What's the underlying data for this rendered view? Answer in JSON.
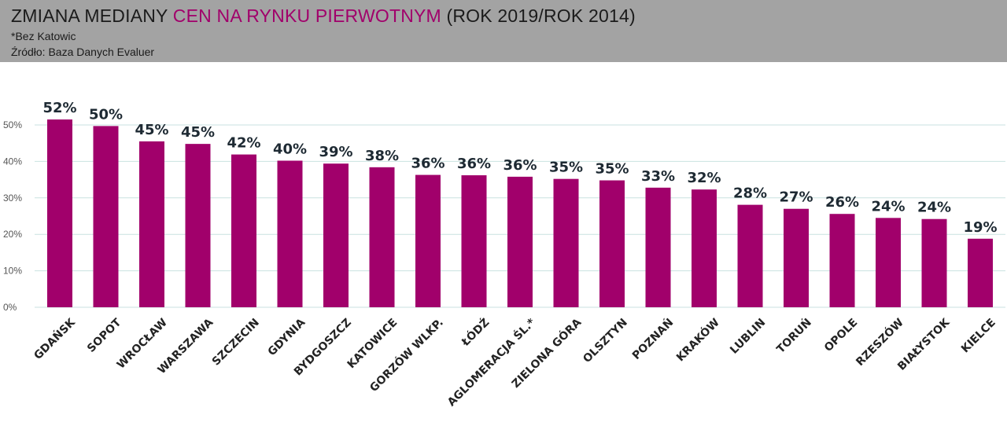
{
  "header": {
    "title_part1": "ZMIANA MEDIANY ",
    "title_part2": "CEN NA RYNKU PIERWOTNYM",
    "title_part3": " (ROK 2019/ROK 2014)",
    "note": "*Bez Katowic",
    "source": "Źródło: Baza Danych Evaluer"
  },
  "colors": {
    "bar": "#a1006b",
    "accent": "#a1006b",
    "header_bg": "#a3a3a3",
    "grid": "#c9e2e0"
  },
  "chart_data": {
    "type": "bar",
    "categories": [
      "GDAŃSK",
      "SOPOT",
      "WROCŁAW",
      "WARSZAWA",
      "SZCZECIN",
      "GDYNIA",
      "BYDGOSZCZ",
      "KATOWICE",
      "GORZÓW WLKP.",
      "ŁÓDŹ",
      "AGLOMERACJA ŚL.*",
      "ZIELONA GÓRA",
      "OLSZTYN",
      "POZNAŃ",
      "KRAKÓW",
      "LUBLIN",
      "TORUŃ",
      "OPOLE",
      "RZESZÓW",
      "BIAŁYSTOK",
      "KIELCE"
    ],
    "values": [
      51.5,
      49.7,
      45.5,
      44.8,
      41.9,
      40.2,
      39.4,
      38.4,
      36.3,
      36.2,
      35.8,
      35.2,
      34.8,
      32.8,
      32.3,
      28.1,
      27.0,
      25.6,
      24.5,
      24.2,
      18.8
    ],
    "data_labels": [
      "52%",
      "50%",
      "45%",
      "45%",
      "42%",
      "40%",
      "39%",
      "38%",
      "36%",
      "36%",
      "36%",
      "35%",
      "35%",
      "33%",
      "32%",
      "28%",
      "27%",
      "26%",
      "24%",
      "24%",
      "19%"
    ],
    "yticks": [
      0,
      10,
      20,
      30,
      40,
      50
    ],
    "ytick_labels": [
      "0%",
      "10%",
      "20%",
      "30%",
      "40%",
      "50%"
    ],
    "ylim": [
      0,
      50
    ],
    "grid": true,
    "legend": "none"
  }
}
